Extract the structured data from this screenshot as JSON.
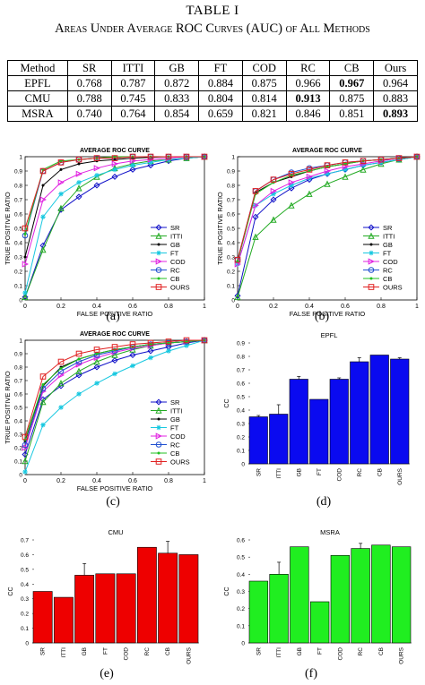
{
  "table": {
    "number": "TABLE I",
    "caption": "Areas Under Average ROC Curves (AUC) of All Methods",
    "header": [
      "Method",
      "SR",
      "ITTI",
      "GB",
      "FT",
      "COD",
      "RC",
      "CB",
      "Ours"
    ],
    "rows": [
      {
        "cells": [
          "EPFL",
          "0.768",
          "0.787",
          "0.872",
          "0.884",
          "0.875",
          "0.966",
          "0.967",
          "0.964"
        ],
        "bold": [
          7
        ]
      },
      {
        "cells": [
          "CMU",
          "0.788",
          "0.745",
          "0.833",
          "0.804",
          "0.814",
          "0.913",
          "0.875",
          "0.883"
        ],
        "bold": [
          6
        ]
      },
      {
        "cells": [
          "MSRA",
          "0.740",
          "0.764",
          "0.854",
          "0.659",
          "0.821",
          "0.846",
          "0.851",
          "0.893"
        ],
        "bold": [
          8
        ]
      }
    ]
  },
  "captions": {
    "a": "(a)",
    "b": "(b)",
    "c": "(c)",
    "d": "(d)",
    "e": "(e)",
    "f": "(f)"
  },
  "chart_data": [
    {
      "type": "line",
      "panel": "a",
      "title": "AVERAGE ROC CURVE",
      "xlabel": "FALSE POSITIVE RATIO",
      "ylabel": "TRUE POSITIVE RATIO",
      "xlim": [
        0,
        1
      ],
      "ylim": [
        0,
        1
      ],
      "xticks": [
        "0",
        "0.2",
        "0.4",
        "0.6",
        "0.8",
        "1"
      ],
      "yticks": [
        "0",
        "0.1",
        "0.2",
        "0.3",
        "0.4",
        "0.5",
        "0.6",
        "0.7",
        "0.8",
        "0.9",
        "1"
      ],
      "legend": "bottom-right",
      "x": [
        0,
        0.1,
        0.2,
        0.3,
        0.4,
        0.5,
        0.6,
        0.7,
        0.8,
        0.9,
        1.0
      ],
      "series": [
        {
          "name": "SR",
          "color": "#1010c8",
          "marker": "diamond",
          "values": [
            0.02,
            0.38,
            0.63,
            0.72,
            0.8,
            0.86,
            0.91,
            0.94,
            0.97,
            0.99,
            1.0
          ]
        },
        {
          "name": "ITTI",
          "color": "#22aa22",
          "marker": "triangle",
          "values": [
            0.02,
            0.35,
            0.64,
            0.78,
            0.86,
            0.92,
            0.95,
            0.97,
            0.98,
            0.99,
            1.0
          ]
        },
        {
          "name": "GB",
          "color": "#000000",
          "marker": "dot",
          "values": [
            0.3,
            0.8,
            0.91,
            0.95,
            0.97,
            0.98,
            0.99,
            0.995,
            1.0,
            1.0,
            1.0
          ]
        },
        {
          "name": "FT",
          "color": "#18c8e0",
          "marker": "star",
          "values": [
            0.05,
            0.58,
            0.74,
            0.82,
            0.87,
            0.91,
            0.94,
            0.96,
            0.98,
            0.99,
            1.0
          ]
        },
        {
          "name": "COD",
          "color": "#e020e0",
          "marker": "triangle-right",
          "values": [
            0.25,
            0.7,
            0.82,
            0.88,
            0.92,
            0.95,
            0.97,
            0.98,
            0.99,
            1.0,
            1.0
          ]
        },
        {
          "name": "RC",
          "color": "#2050d0",
          "marker": "circle",
          "values": [
            0.45,
            0.9,
            0.96,
            0.98,
            0.99,
            0.99,
            1.0,
            1.0,
            1.0,
            1.0,
            1.0
          ]
        },
        {
          "name": "CB",
          "color": "#20c020",
          "marker": "dot",
          "values": [
            0.46,
            0.91,
            0.97,
            0.98,
            0.99,
            1.0,
            1.0,
            1.0,
            1.0,
            1.0,
            1.0
          ]
        },
        {
          "name": "OURS",
          "color": "#e02020",
          "marker": "square",
          "values": [
            0.5,
            0.9,
            0.96,
            0.98,
            0.99,
            0.99,
            1.0,
            1.0,
            1.0,
            1.0,
            1.0
          ]
        }
      ]
    },
    {
      "type": "line",
      "panel": "b",
      "title": "AVERAGE ROC CURVE",
      "xlabel": "FALSE POSITIVE RATIO",
      "ylabel": "TRUE POSITIVE RATIO",
      "xlim": [
        0,
        1
      ],
      "ylim": [
        0,
        1
      ],
      "xticks": [
        "0",
        "0.2",
        "0.4",
        "0.6",
        "0.8",
        "1"
      ],
      "yticks": [
        "0",
        "0.1",
        "0.2",
        "0.3",
        "0.4",
        "0.5",
        "0.6",
        "0.7",
        "0.8",
        "0.9",
        "1"
      ],
      "legend": "bottom-right",
      "x": [
        0,
        0.1,
        0.2,
        0.3,
        0.4,
        0.5,
        0.6,
        0.7,
        0.8,
        0.9,
        1.0
      ],
      "series": [
        {
          "name": "SR",
          "color": "#1010c8",
          "marker": "diamond",
          "values": [
            0.03,
            0.58,
            0.7,
            0.78,
            0.84,
            0.88,
            0.91,
            0.94,
            0.96,
            0.98,
            1.0
          ]
        },
        {
          "name": "ITTI",
          "color": "#22aa22",
          "marker": "triangle",
          "values": [
            0.02,
            0.44,
            0.56,
            0.66,
            0.74,
            0.81,
            0.86,
            0.91,
            0.95,
            0.98,
            1.0
          ]
        },
        {
          "name": "GB",
          "color": "#000000",
          "marker": "dot",
          "values": [
            0.27,
            0.75,
            0.82,
            0.86,
            0.9,
            0.93,
            0.95,
            0.97,
            0.98,
            0.99,
            1.0
          ]
        },
        {
          "name": "FT",
          "color": "#18c8e0",
          "marker": "star",
          "values": [
            0.25,
            0.66,
            0.74,
            0.8,
            0.85,
            0.88,
            0.91,
            0.94,
            0.96,
            0.98,
            1.0
          ]
        },
        {
          "name": "COD",
          "color": "#e020e0",
          "marker": "triangle-right",
          "values": [
            0.25,
            0.66,
            0.76,
            0.82,
            0.86,
            0.9,
            0.93,
            0.95,
            0.97,
            0.99,
            1.0
          ]
        },
        {
          "name": "RC",
          "color": "#2050d0",
          "marker": "circle",
          "values": [
            0.28,
            0.76,
            0.84,
            0.89,
            0.92,
            0.94,
            0.96,
            0.97,
            0.98,
            0.99,
            1.0
          ]
        },
        {
          "name": "CB",
          "color": "#20c020",
          "marker": "dot",
          "values": [
            0.27,
            0.74,
            0.82,
            0.87,
            0.9,
            0.93,
            0.95,
            0.97,
            0.98,
            0.99,
            1.0
          ]
        },
        {
          "name": "OURS",
          "color": "#e02020",
          "marker": "square",
          "values": [
            0.28,
            0.76,
            0.84,
            0.88,
            0.91,
            0.94,
            0.96,
            0.97,
            0.98,
            0.99,
            1.0
          ]
        }
      ]
    },
    {
      "type": "line",
      "panel": "c",
      "title": "AVERAGE ROC CURVE",
      "xlabel": "FALSE POSITIVE RATIO",
      "ylabel": "TRUE POSITIVE RATIO",
      "xlim": [
        0,
        1
      ],
      "ylim": [
        0,
        1
      ],
      "xticks": [
        "0",
        "0.2",
        "0.4",
        "0.6",
        "0.8",
        "1"
      ],
      "yticks": [
        "0",
        "0.1",
        "0.2",
        "0.3",
        "0.4",
        "0.5",
        "0.6",
        "0.7",
        "0.8",
        "0.9",
        "1"
      ],
      "legend": "bottom-right",
      "x": [
        0,
        0.1,
        0.2,
        0.3,
        0.4,
        0.5,
        0.6,
        0.7,
        0.8,
        0.9,
        1.0
      ],
      "series": [
        {
          "name": "SR",
          "color": "#1010c8",
          "marker": "diamond",
          "values": [
            0.15,
            0.56,
            0.66,
            0.74,
            0.8,
            0.85,
            0.89,
            0.92,
            0.95,
            0.98,
            1.0
          ]
        },
        {
          "name": "ITTI",
          "color": "#22aa22",
          "marker": "triangle",
          "values": [
            0.1,
            0.54,
            0.68,
            0.77,
            0.84,
            0.89,
            0.93,
            0.96,
            0.98,
            0.99,
            1.0
          ]
        },
        {
          "name": "GB",
          "color": "#000000",
          "marker": "dot",
          "values": [
            0.25,
            0.66,
            0.8,
            0.86,
            0.9,
            0.93,
            0.95,
            0.97,
            0.98,
            0.99,
            1.0
          ]
        },
        {
          "name": "FT",
          "color": "#18c8e0",
          "marker": "star",
          "values": [
            0.02,
            0.37,
            0.5,
            0.6,
            0.68,
            0.75,
            0.81,
            0.87,
            0.92,
            0.96,
            1.0
          ]
        },
        {
          "name": "COD",
          "color": "#e020e0",
          "marker": "triangle-right",
          "values": [
            0.2,
            0.62,
            0.74,
            0.82,
            0.87,
            0.91,
            0.94,
            0.96,
            0.98,
            0.99,
            1.0
          ]
        },
        {
          "name": "RC",
          "color": "#2050d0",
          "marker": "circle",
          "values": [
            0.22,
            0.64,
            0.77,
            0.84,
            0.89,
            0.92,
            0.95,
            0.97,
            0.98,
            0.99,
            1.0
          ]
        },
        {
          "name": "CB",
          "color": "#20c020",
          "marker": "dot",
          "values": [
            0.26,
            0.67,
            0.79,
            0.86,
            0.9,
            0.93,
            0.95,
            0.97,
            0.98,
            0.99,
            1.0
          ]
        },
        {
          "name": "OURS",
          "color": "#e02020",
          "marker": "square",
          "values": [
            0.28,
            0.73,
            0.84,
            0.9,
            0.93,
            0.95,
            0.97,
            0.98,
            0.99,
            1.0,
            1.0
          ]
        }
      ]
    },
    {
      "type": "bar",
      "panel": "d",
      "title": "EPFL",
      "ylabel": "CC",
      "color": "#0a0af0",
      "ylim": [
        0,
        0.9
      ],
      "yticks": [
        "0",
        "0.1",
        "0.2",
        "0.3",
        "0.4",
        "0.5",
        "0.6",
        "0.7",
        "0.8",
        "0.9"
      ],
      "categories": [
        "SR",
        "ITTI",
        "GB",
        "FT",
        "COD",
        "RC",
        "CB",
        "OURS"
      ],
      "values": [
        0.35,
        0.37,
        0.63,
        0.48,
        0.63,
        0.76,
        0.81,
        0.78
      ],
      "errors": [
        0.01,
        0.07,
        0.02,
        0.0,
        0.01,
        0.03,
        0.0,
        0.01
      ]
    },
    {
      "type": "bar",
      "panel": "e",
      "title": "CMU",
      "ylabel": "CC",
      "color": "#ee0000",
      "ylim": [
        0,
        0.7
      ],
      "yticks": [
        "0",
        "0.1",
        "0.2",
        "0.3",
        "0.4",
        "0.5",
        "0.6",
        "0.7"
      ],
      "categories": [
        "SR",
        "ITTI",
        "GB",
        "FT",
        "COD",
        "RC",
        "CB",
        "OURS"
      ],
      "values": [
        0.35,
        0.31,
        0.46,
        0.47,
        0.47,
        0.65,
        0.61,
        0.6
      ],
      "errors": [
        0.0,
        0.0,
        0.08,
        0.0,
        0.0,
        0.0,
        0.08,
        0.0
      ]
    },
    {
      "type": "bar",
      "panel": "f",
      "title": "MSRA",
      "ylabel": "CC",
      "color": "#20ee20",
      "ylim": [
        0,
        0.6
      ],
      "yticks": [
        "0",
        "0.1",
        "0.2",
        "0.3",
        "0.4",
        "0.5",
        "0.6"
      ],
      "categories": [
        "SR",
        "ITTI",
        "GB",
        "FT",
        "COD",
        "RC",
        "CB",
        "OURS"
      ],
      "values": [
        0.36,
        0.4,
        0.56,
        0.24,
        0.51,
        0.55,
        0.57,
        0.56
      ],
      "errors": [
        0.0,
        0.07,
        0.0,
        0.0,
        0.0,
        0.03,
        0.0,
        0.0
      ]
    }
  ]
}
